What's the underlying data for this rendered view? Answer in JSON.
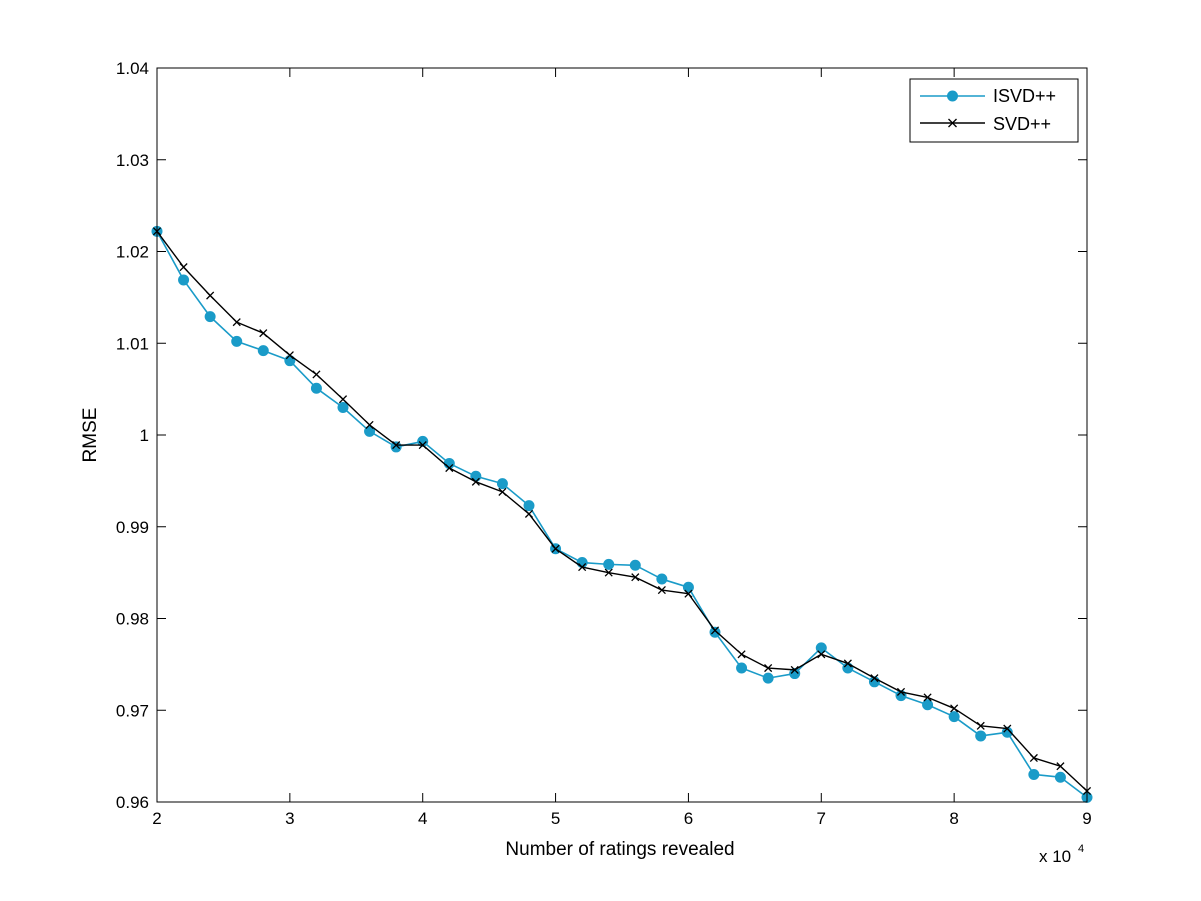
{
  "chart_data": {
    "type": "line",
    "title": "",
    "xlabel": "Number of ratings revealed",
    "ylabel": "RMSE",
    "x_multiplier_label": "x 10",
    "x_multiplier_exponent": "4",
    "xlim": [
      2,
      9
    ],
    "ylim": [
      0.96,
      1.04
    ],
    "xticks": [
      2,
      3,
      4,
      5,
      6,
      7,
      8,
      9
    ],
    "xtick_labels": [
      "2",
      "3",
      "4",
      "5",
      "6",
      "7",
      "8",
      "9"
    ],
    "yticks": [
      0.96,
      0.97,
      0.98,
      0.99,
      1.0,
      1.01,
      1.02,
      1.03,
      1.04
    ],
    "ytick_labels": [
      "0.96",
      "0.97",
      "0.98",
      "0.99",
      "1",
      "1.01",
      "1.02",
      "1.03",
      "1.04"
    ],
    "grid": false,
    "legend_position": "top-right",
    "x": [
      2.0,
      2.2,
      2.4,
      2.6,
      2.8,
      3.0,
      3.2,
      3.4,
      3.6,
      3.8,
      4.0,
      4.2,
      4.4,
      4.6,
      4.8,
      5.0,
      5.2,
      5.4,
      5.6,
      5.8,
      6.0,
      6.2,
      6.4,
      6.6,
      6.8,
      7.0,
      7.2,
      7.4,
      7.6,
      7.8,
      8.0,
      8.2,
      8.4,
      8.6,
      8.8,
      9.0
    ],
    "series": [
      {
        "name": "ISVD++",
        "color": "#1a9bc8",
        "marker": "circle",
        "values": [
          1.0222,
          1.0169,
          1.0129,
          1.0102,
          1.0092,
          1.0081,
          1.0051,
          1.003,
          1.0004,
          0.9987,
          0.9993,
          0.9969,
          0.9955,
          0.9947,
          0.9923,
          0.9876,
          0.9861,
          0.9859,
          0.9858,
          0.9843,
          0.9834,
          0.9785,
          0.9746,
          0.9735,
          0.974,
          0.9768,
          0.9746,
          0.9731,
          0.9716,
          0.9706,
          0.9693,
          0.9672,
          0.9676,
          0.963,
          0.9627,
          0.9605
        ]
      },
      {
        "name": "SVD++",
        "color": "#000000",
        "marker": "x",
        "values": [
          1.0222,
          1.0183,
          1.0152,
          1.0123,
          1.0111,
          1.0087,
          1.0066,
          1.0039,
          1.0011,
          0.9989,
          0.9989,
          0.9964,
          0.9949,
          0.9938,
          0.9914,
          0.9876,
          0.9856,
          0.985,
          0.9845,
          0.9831,
          0.9827,
          0.9787,
          0.9761,
          0.9746,
          0.9744,
          0.9761,
          0.9751,
          0.9735,
          0.972,
          0.9714,
          0.9702,
          0.9683,
          0.968,
          0.9648,
          0.9639,
          0.9612
        ]
      }
    ]
  }
}
